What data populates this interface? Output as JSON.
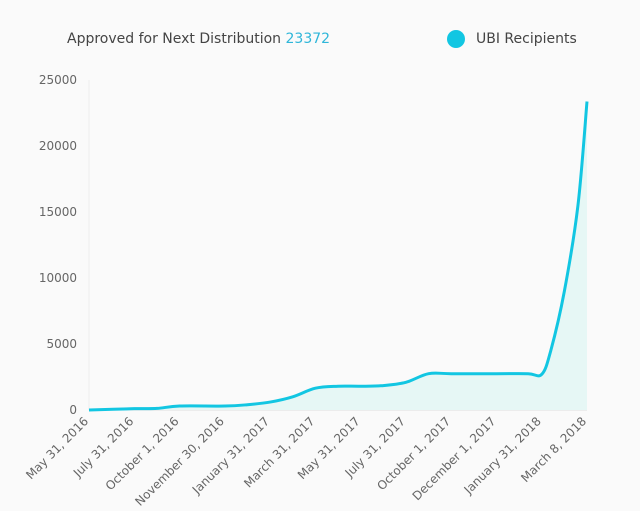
{
  "header": {
    "label": "Approved for Next Distribution",
    "value": "23372"
  },
  "chart_data": {
    "type": "area",
    "title": "Approved for Next Distribution 23372",
    "legend": [
      {
        "name": "UBI Recipients",
        "color": "#12c6e2"
      }
    ],
    "legend_placement": "top-right",
    "categories": [
      "May 31, 2016",
      "July 31, 2016",
      "October 1, 2016",
      "November 30, 2016",
      "January 31, 2017",
      "March 31, 2017",
      "May 31, 2017",
      "July 31, 2017",
      "October 1, 2017",
      "December 1, 2017",
      "January 31, 2018",
      "March 8, 2018"
    ],
    "yticks": [
      0,
      5000,
      10000,
      15000,
      20000,
      25000
    ],
    "ylim": [
      0,
      25000
    ],
    "grid": false,
    "series": [
      {
        "name": "UBI Recipients",
        "points": [
          [
            0,
            0
          ],
          [
            1,
            100
          ],
          [
            1.5,
            120
          ],
          [
            2,
            300
          ],
          [
            3,
            300
          ],
          [
            3.5,
            400
          ],
          [
            4,
            600
          ],
          [
            4.5,
            1000
          ],
          [
            5,
            1650
          ],
          [
            5.5,
            1800
          ],
          [
            6,
            1800
          ],
          [
            6.5,
            1850
          ],
          [
            7,
            2100
          ],
          [
            7.5,
            2750
          ],
          [
            8,
            2750
          ],
          [
            9,
            2750
          ],
          [
            9.7,
            2750
          ],
          [
            10,
            2700
          ],
          [
            10.2,
            4500
          ],
          [
            10.5,
            9000
          ],
          [
            10.8,
            15500
          ],
          [
            11,
            23372
          ]
        ]
      }
    ]
  }
}
